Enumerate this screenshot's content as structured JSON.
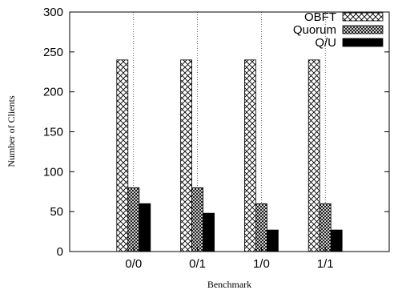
{
  "chart_data": {
    "type": "bar",
    "title": "",
    "xlabel": "Benchmark",
    "ylabel": "Number of Clients",
    "categories": [
      "0/0",
      "0/1",
      "1/0",
      "1/1"
    ],
    "ylim": [
      0,
      300
    ],
    "yticks": [
      0,
      50,
      100,
      150,
      200,
      250,
      300
    ],
    "grid": "dotted vertical line at each category",
    "legend_placement": "top-right",
    "series": [
      {
        "name": "OBFT",
        "values": [
          240,
          240,
          240,
          240
        ],
        "pattern": "diagonal-crosshatch",
        "color": "#000000"
      },
      {
        "name": "Quorum",
        "values": [
          80,
          80,
          60,
          60
        ],
        "pattern": "dense-crosshatch",
        "color": "#000000"
      },
      {
        "name": "Q/U",
        "values": [
          60,
          48,
          27,
          27
        ],
        "pattern": "solid",
        "color": "#000000"
      }
    ]
  }
}
